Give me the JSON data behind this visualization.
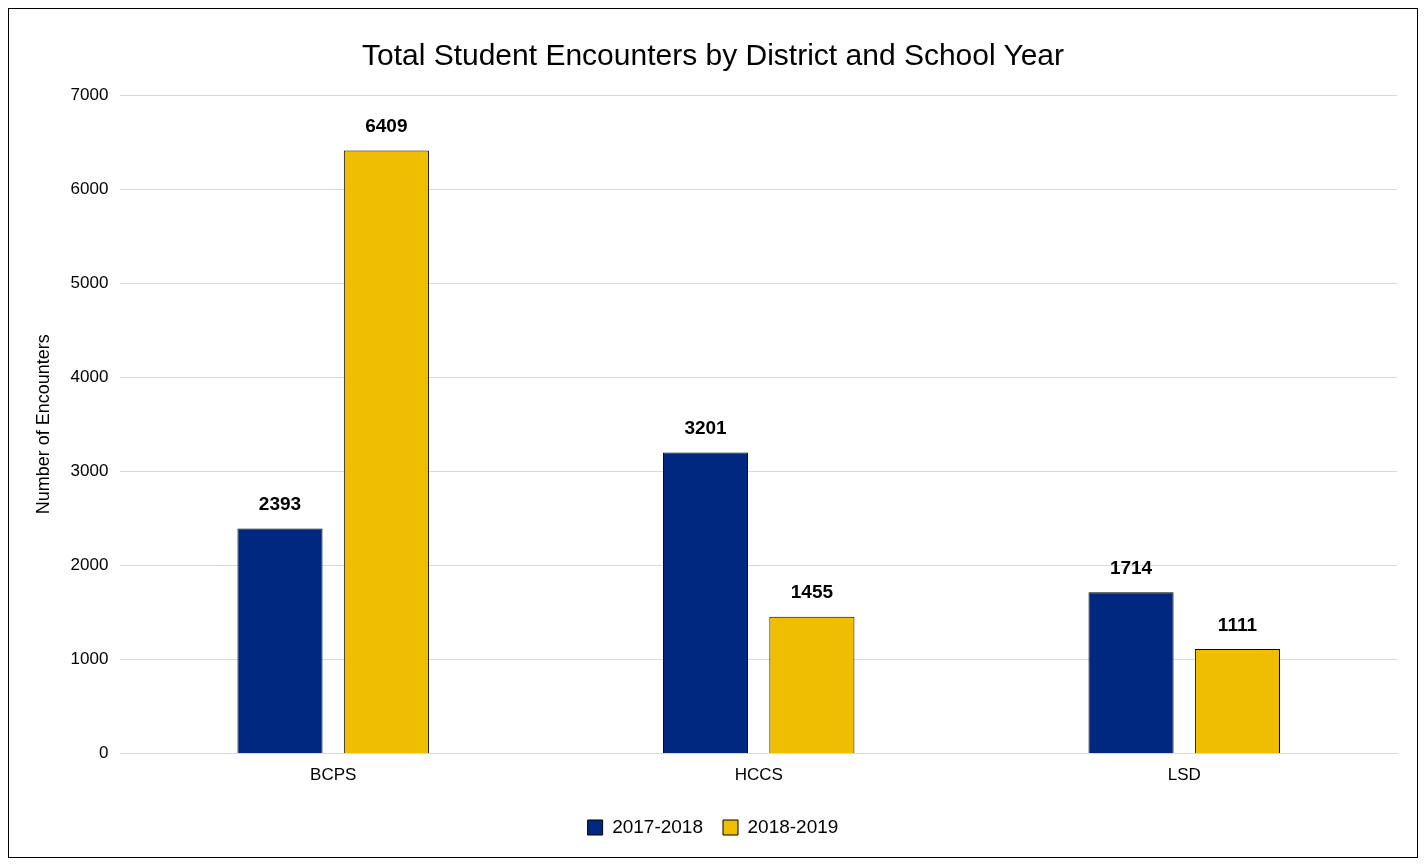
{
  "chart_data": {
    "type": "bar",
    "title": "Total Student Encounters by District and School Year",
    "ylabel": "Number of Encounters",
    "categories": [
      "BCPS",
      "HCCS",
      "LSD"
    ],
    "series": [
      {
        "name": "2017-2018",
        "color": "#002880",
        "values": [
          2393,
          3201,
          1714
        ]
      },
      {
        "name": "2018-2019",
        "color": "#f0be00",
        "values": [
          6409,
          1455,
          1111
        ]
      }
    ],
    "ylim": [
      0,
      7000
    ],
    "yticks": [
      0,
      1000,
      2000,
      3000,
      4000,
      5000,
      6000,
      7000
    ],
    "grid": "y",
    "legend": "bottom",
    "data_labels": true
  }
}
